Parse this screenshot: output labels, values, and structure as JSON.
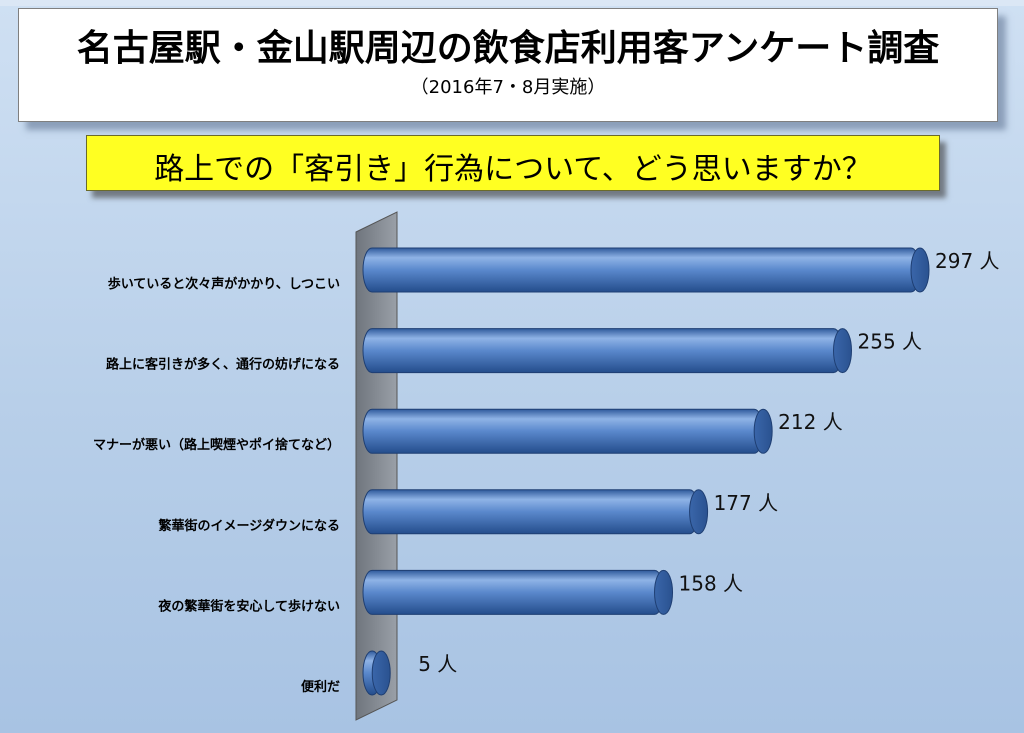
{
  "header": {
    "title": "名古屋駅・金山駅周辺の飲食店利用客アンケート調査",
    "subtitle": "（2016年7・8月実施）"
  },
  "question": "路上での「客引き」行為について、どう思いますか？",
  "unit": "人",
  "colors": {
    "bar": "#4a7ac0",
    "bar_dark": "#2f5a9c",
    "bar_light": "#8fb3e6",
    "wall": "#8a8f96",
    "yellow": "#ffff22"
  },
  "chart_data": {
    "type": "bar",
    "orientation": "horizontal",
    "style": "3d-cylinder",
    "categories": [
      "歩いていると次々声がかかり、しつこい",
      "路上に客引きが多く、通行の妨げになる",
      "マナーが悪い（路上喫煙やポイ捨てなど）",
      "繁華街のイメージダウンになる",
      "夜の繁華街を安心して歩けない",
      "便利だ"
    ],
    "values": [
      297,
      255,
      212,
      177,
      158,
      5
    ],
    "value_labels": [
      "297 人",
      "255 人",
      "212 人",
      "177 人",
      "158 人",
      "5 人"
    ],
    "xlim": [
      0,
      297
    ],
    "grid": false,
    "legend": "none"
  }
}
